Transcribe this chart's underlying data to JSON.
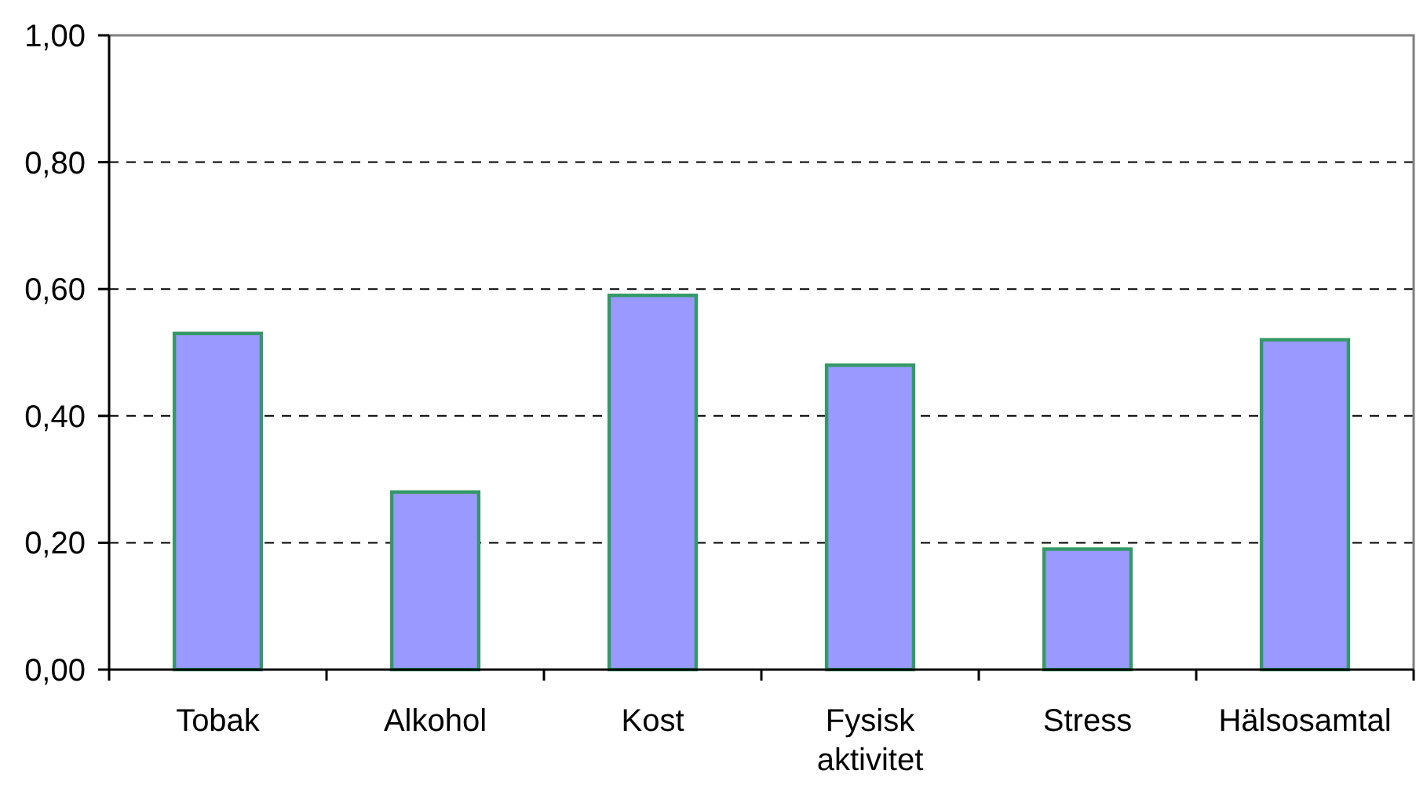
{
  "chart_data": {
    "type": "bar",
    "categories": [
      "Tobak",
      "Alkohol",
      "Kost",
      "Fysisk aktivitet",
      "Stress",
      "Hälsosamtal"
    ],
    "values": [
      0.53,
      0.28,
      0.59,
      0.48,
      0.19,
      0.52
    ],
    "color": "#9999ff",
    "ylim": [
      0,
      1
    ],
    "yticks": [
      {
        "value": 0,
        "label": "0,00"
      },
      {
        "value": 0.2,
        "label": "0,20"
      },
      {
        "value": 0.4,
        "label": "0,40"
      },
      {
        "value": 0.6,
        "label": "0,60"
      },
      {
        "value": 0.8,
        "label": "0,80"
      },
      {
        "value": 1,
        "label": "1,00"
      }
    ],
    "grid": "y"
  }
}
